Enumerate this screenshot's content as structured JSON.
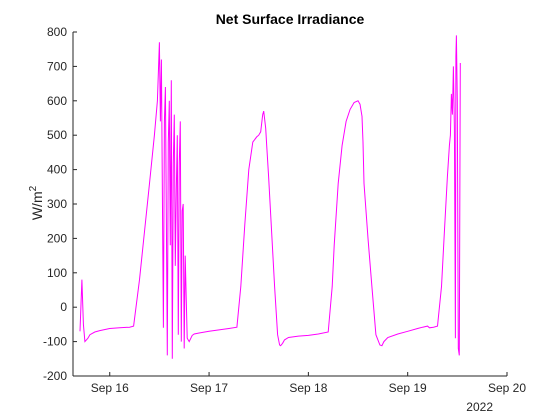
{
  "chart_data": {
    "type": "line",
    "title": "Net Surface Irradiance",
    "xlabel": "",
    "ylabel": "W/m",
    "ylabel_superscript": "2",
    "x_secondary_label": "2022",
    "x_unit": "day of September 2022",
    "xlim": [
      15.63,
      20.0
    ],
    "ylim": [
      -200,
      800
    ],
    "x_ticks": [
      16,
      17,
      18,
      19,
      20
    ],
    "x_tick_labels": [
      "Sep 16",
      "Sep 17",
      "Sep 18",
      "Sep 19",
      "Sep 20"
    ],
    "y_ticks": [
      -200,
      -100,
      0,
      100,
      200,
      300,
      400,
      500,
      600,
      700,
      800
    ],
    "y_tick_labels": [
      "-200",
      "-100",
      "0",
      "100",
      "200",
      "300",
      "400",
      "500",
      "600",
      "700",
      "800"
    ],
    "grid": false,
    "legend": "none",
    "colors": {
      "series": "#ff00ff",
      "axis": "#262626",
      "background": "#ffffff"
    },
    "series": [
      {
        "x": [
          15.7,
          15.72,
          15.735,
          15.75,
          15.765,
          15.78,
          15.8,
          15.85,
          15.9,
          16.0,
          16.1,
          16.2,
          16.24,
          16.3,
          16.35,
          16.4,
          16.45,
          16.48,
          16.5,
          16.51,
          16.52,
          16.53,
          16.54,
          16.55,
          16.56,
          16.57,
          16.58,
          16.59,
          16.6,
          16.61,
          16.62,
          16.63,
          16.64,
          16.65,
          16.66,
          16.67,
          16.68,
          16.69,
          16.7,
          16.71,
          16.72,
          16.73,
          16.74,
          16.75,
          16.76,
          16.78,
          16.8,
          16.83,
          16.85,
          16.9,
          17.0,
          17.1,
          17.2,
          17.28,
          17.32,
          17.36,
          17.4,
          17.44,
          17.48,
          17.5,
          17.52,
          17.54,
          17.55,
          17.56,
          17.57,
          17.58,
          17.6,
          17.63,
          17.66,
          17.69,
          17.71,
          17.72,
          17.74,
          17.76,
          17.8,
          17.9,
          18.0,
          18.1,
          18.2,
          18.24,
          18.26,
          18.3,
          18.34,
          18.38,
          18.42,
          18.46,
          18.5,
          18.52,
          18.54,
          18.55,
          18.56,
          18.6,
          18.64,
          18.68,
          18.72,
          18.74,
          18.76,
          18.8,
          18.9,
          19.0,
          19.1,
          19.15,
          19.2,
          19.22,
          19.26,
          19.3,
          19.34,
          19.37,
          19.4,
          19.42,
          19.43,
          19.44,
          19.45,
          19.46,
          19.47,
          19.48,
          19.485,
          19.49,
          19.5,
          19.51,
          19.52,
          19.53
        ],
        "y": [
          -70,
          80,
          -50,
          -100,
          -95,
          -90,
          -80,
          -72,
          -68,
          -62,
          -60,
          -58,
          -55,
          80,
          220,
          360,
          500,
          600,
          770,
          540,
          720,
          320,
          -60,
          540,
          640,
          240,
          -140,
          480,
          600,
          180,
          660,
          -150,
          420,
          560,
          120,
          340,
          500,
          -80,
          420,
          540,
          -100,
          280,
          300,
          -120,
          150,
          -90,
          -100,
          -82,
          -78,
          -75,
          -70,
          -66,
          -62,
          -58,
          60,
          240,
          400,
          480,
          495,
          500,
          510,
          560,
          570,
          545,
          520,
          470,
          380,
          220,
          60,
          -80,
          -110,
          -112,
          -105,
          -95,
          -88,
          -84,
          -82,
          -78,
          -72,
          60,
          180,
          360,
          470,
          540,
          575,
          595,
          600,
          590,
          555,
          480,
          360,
          200,
          60,
          -80,
          -110,
          -112,
          -100,
          -88,
          -78,
          -70,
          -62,
          -58,
          -55,
          -60,
          -58,
          -55,
          60,
          220,
          380,
          470,
          500,
          620,
          560,
          700,
          520,
          -90,
          730,
          790,
          600,
          -120,
          -140,
          710
        ]
      }
    ]
  }
}
